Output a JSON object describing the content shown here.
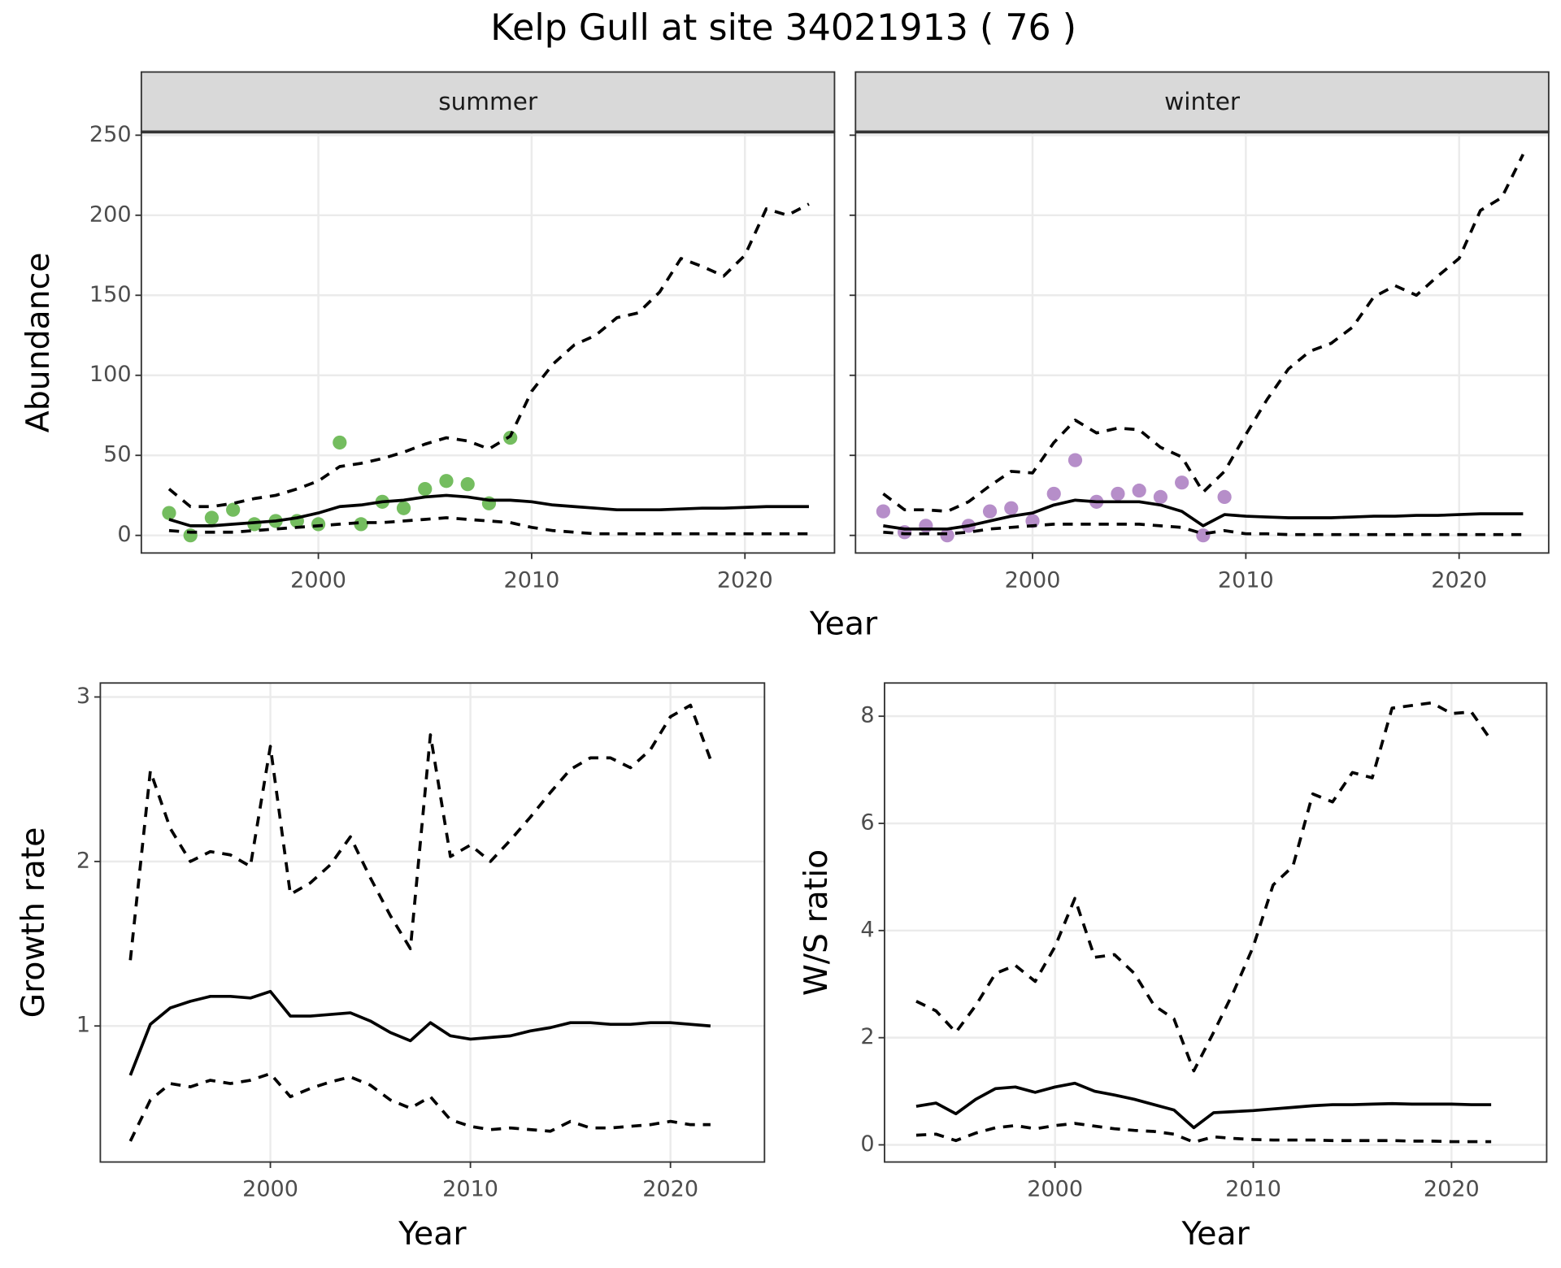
{
  "title": "Kelp Gull at site 34021913 ( 76 )",
  "chart_data": [
    {
      "type": "line",
      "strip": "summer",
      "ylabel": "Abundance",
      "xlabel": "Year",
      "xlim": [
        1991.7,
        2024.2
      ],
      "ylim": [
        -11,
        252
      ],
      "xticks": [
        2000,
        2010,
        2020
      ],
      "yticks": [
        0,
        50,
        100,
        150,
        200,
        250
      ],
      "ytick_labels": true,
      "grid": true,
      "x": [
        1993,
        1994,
        1995,
        1996,
        1997,
        1998,
        1999,
        2000,
        2001,
        2002,
        2003,
        2004,
        2005,
        2006,
        2007,
        2008,
        2009,
        2010,
        2011,
        2012,
        2013,
        2014,
        2015,
        2016,
        2017,
        2018,
        2019,
        2020,
        2021,
        2022,
        2023
      ],
      "series": [
        {
          "style": "points",
          "color": "#74bd5f",
          "values": [
            14,
            0,
            11,
            16,
            7,
            9,
            9,
            7,
            58,
            7,
            21,
            17,
            29,
            34,
            32,
            20,
            61,
            null,
            null,
            null,
            null,
            null,
            null,
            null,
            null,
            null,
            null,
            null,
            null,
            null,
            null
          ]
        },
        {
          "style": "solid",
          "color": "#000000",
          "values": [
            10,
            6,
            6,
            7,
            8,
            9,
            11,
            14,
            18,
            19,
            21,
            22,
            24,
            25,
            24,
            22,
            22,
            21,
            19,
            18,
            17,
            16,
            16,
            16,
            16.5,
            17,
            17,
            17.5,
            18,
            18,
            18
          ]
        },
        {
          "style": "dashed",
          "color": "#000000",
          "values": [
            29,
            18,
            18,
            20,
            23,
            25,
            29,
            34,
            43,
            45,
            48,
            52,
            57,
            61,
            59,
            54,
            62,
            90,
            107,
            119,
            125,
            136,
            139,
            152,
            173,
            168,
            162,
            175,
            204,
            200,
            207
          ]
        },
        {
          "style": "dashed",
          "color": "#000000",
          "values": [
            3,
            2,
            2,
            2,
            3,
            4,
            5,
            6,
            7,
            8,
            8,
            9,
            10,
            11,
            10,
            9,
            8,
            5,
            3,
            2,
            1,
            1,
            1,
            1,
            1,
            1,
            1,
            1,
            1,
            1,
            1
          ]
        }
      ]
    },
    {
      "type": "line",
      "strip": "winter",
      "xlim": [
        1991.7,
        2024.2
      ],
      "ylim": [
        -11,
        252
      ],
      "xticks": [
        2000,
        2010,
        2020
      ],
      "yticks": [
        0,
        50,
        100,
        150,
        200,
        250
      ],
      "ytick_labels": false,
      "grid": true,
      "x": [
        1993,
        1994,
        1995,
        1996,
        1997,
        1998,
        1999,
        2000,
        2001,
        2002,
        2003,
        2004,
        2005,
        2006,
        2007,
        2008,
        2009,
        2010,
        2011,
        2012,
        2013,
        2014,
        2015,
        2016,
        2017,
        2018,
        2019,
        2020,
        2021,
        2022,
        2023
      ],
      "series": [
        {
          "style": "points",
          "color": "#b68ec9",
          "values": [
            15,
            2,
            6,
            0,
            6,
            15,
            17,
            9,
            26,
            47,
            21,
            26,
            28,
            24,
            33,
            0,
            24,
            null,
            null,
            null,
            null,
            null,
            null,
            null,
            null,
            null,
            null,
            null,
            null,
            null,
            null
          ]
        },
        {
          "style": "solid",
          "color": "#000000",
          "values": [
            6,
            4,
            4,
            4,
            6,
            9,
            12,
            14,
            19,
            22,
            21,
            21,
            21,
            19,
            15,
            6,
            13,
            12,
            11.5,
            11,
            11,
            11,
            11.5,
            12,
            12,
            12.5,
            12.5,
            13,
            13.5,
            13.5,
            13.5
          ]
        },
        {
          "style": "dashed",
          "color": "#000000",
          "values": [
            26,
            16,
            16,
            15,
            21,
            31,
            40,
            39,
            58,
            72,
            64,
            67,
            66,
            55,
            49,
            27,
            40,
            63,
            85,
            104,
            115,
            120,
            130,
            149,
            156,
            150,
            162,
            173,
            203,
            211,
            238
          ]
        },
        {
          "style": "dashed",
          "color": "#000000",
          "values": [
            2,
            1,
            1,
            1,
            2,
            4,
            5,
            6,
            7,
            7,
            7,
            7,
            7,
            6,
            5,
            1,
            3,
            1,
            1,
            0.5,
            0.5,
            0.5,
            0.5,
            0.5,
            0.5,
            0.5,
            0.5,
            0.5,
            0.5,
            0.5,
            0.5
          ]
        }
      ]
    },
    {
      "type": "line",
      "ylabel": "Growth rate",
      "xlabel": "Year",
      "xlim": [
        1991.5,
        2024.7
      ],
      "ylim": [
        0.173,
        3.085
      ],
      "xticks": [
        2000,
        2010,
        2020
      ],
      "yticks": [
        1,
        2,
        3
      ],
      "ytick_labels": true,
      "grid": true,
      "x": [
        1993,
        1994,
        1995,
        1996,
        1997,
        1998,
        1999,
        2000,
        2001,
        2002,
        2003,
        2004,
        2005,
        2006,
        2007,
        2008,
        2009,
        2010,
        2011,
        2012,
        2013,
        2014,
        2015,
        2016,
        2017,
        2018,
        2019,
        2020,
        2021,
        2022
      ],
      "series": [
        {
          "style": "solid",
          "color": "#000000",
          "values": [
            0.7,
            1.01,
            1.11,
            1.15,
            1.18,
            1.18,
            1.17,
            1.21,
            1.06,
            1.06,
            1.07,
            1.08,
            1.03,
            0.96,
            0.91,
            1.02,
            0.94,
            0.92,
            0.93,
            0.94,
            0.97,
            0.99,
            1.02,
            1.02,
            1.01,
            1.01,
            1.02,
            1.02,
            1.01,
            1.0
          ]
        },
        {
          "style": "dashed",
          "color": "#000000",
          "values": [
            1.4,
            2.55,
            2.2,
            2.0,
            2.06,
            2.04,
            1.97,
            2.7,
            1.8,
            1.87,
            1.98,
            2.15,
            1.9,
            1.67,
            1.47,
            2.77,
            2.03,
            2.1,
            2.0,
            2.13,
            2.27,
            2.42,
            2.56,
            2.63,
            2.63,
            2.57,
            2.68,
            2.88,
            2.95,
            2.62
          ]
        },
        {
          "style": "dashed",
          "color": "#000000",
          "values": [
            0.3,
            0.55,
            0.65,
            0.63,
            0.67,
            0.65,
            0.67,
            0.71,
            0.57,
            0.62,
            0.66,
            0.69,
            0.64,
            0.55,
            0.5,
            0.57,
            0.43,
            0.39,
            0.37,
            0.38,
            0.37,
            0.36,
            0.42,
            0.38,
            0.38,
            0.39,
            0.4,
            0.42,
            0.4,
            0.4
          ]
        }
      ]
    },
    {
      "type": "line",
      "ylabel": "W/S ratio",
      "xlabel": "Year",
      "xlim": [
        1991.4,
        2024.8
      ],
      "ylim": [
        -0.32,
        8.62
      ],
      "xticks": [
        2000,
        2010,
        2020
      ],
      "yticks": [
        0,
        2,
        4,
        6,
        8
      ],
      "ytick_labels": true,
      "grid": true,
      "x": [
        1993,
        1994,
        1995,
        1996,
        1997,
        1998,
        1999,
        2000,
        2001,
        2002,
        2003,
        2004,
        2005,
        2006,
        2007,
        2008,
        2009,
        2010,
        2011,
        2012,
        2013,
        2014,
        2015,
        2016,
        2017,
        2018,
        2019,
        2020,
        2021,
        2022
      ],
      "series": [
        {
          "style": "solid",
          "color": "#000000",
          "values": [
            0.72,
            0.78,
            0.58,
            0.85,
            1.05,
            1.08,
            0.98,
            1.08,
            1.15,
            1.0,
            0.93,
            0.85,
            0.75,
            0.65,
            0.32,
            0.6,
            0.62,
            0.64,
            0.67,
            0.7,
            0.73,
            0.75,
            0.75,
            0.76,
            0.77,
            0.76,
            0.76,
            0.76,
            0.75,
            0.75
          ]
        },
        {
          "style": "dashed",
          "color": "#000000",
          "values": [
            2.68,
            2.5,
            2.1,
            2.6,
            3.2,
            3.35,
            3.05,
            3.7,
            4.6,
            3.5,
            3.55,
            3.2,
            2.6,
            2.35,
            1.38,
            2.1,
            2.85,
            3.7,
            4.85,
            5.2,
            6.55,
            6.4,
            6.95,
            6.85,
            8.15,
            8.2,
            8.25,
            8.05,
            8.08,
            7.55
          ]
        },
        {
          "style": "dashed",
          "color": "#000000",
          "values": [
            0.18,
            0.2,
            0.08,
            0.22,
            0.32,
            0.36,
            0.3,
            0.36,
            0.4,
            0.35,
            0.3,
            0.27,
            0.25,
            0.2,
            0.05,
            0.15,
            0.12,
            0.1,
            0.09,
            0.09,
            0.09,
            0.08,
            0.08,
            0.08,
            0.08,
            0.07,
            0.07,
            0.06,
            0.06,
            0.06
          ]
        }
      ]
    }
  ]
}
